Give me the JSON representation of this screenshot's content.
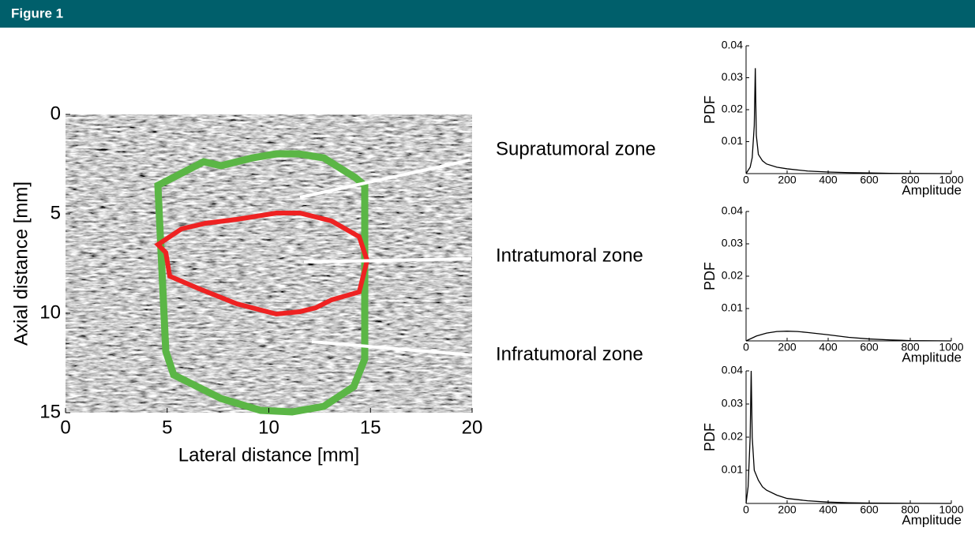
{
  "header": {
    "title": "Figure 1"
  },
  "chart_data": [
    {
      "type": "image",
      "xlabel": "Lateral distance [mm]",
      "ylabel": "Axial distance [mm]",
      "xlim": [
        0,
        20
      ],
      "ylim": [
        15,
        0
      ],
      "xticks": [
        0,
        5,
        10,
        15,
        20
      ],
      "yticks": [
        0,
        5,
        10,
        15
      ],
      "annotations": [
        "Supratumoral zone",
        "Intratumoral zone",
        "Infratumoral zone"
      ]
    },
    {
      "type": "line",
      "xlabel": "Amplitude",
      "ylabel": "PDF",
      "color": "#000000",
      "x": [
        0,
        20,
        30,
        40,
        45,
        50,
        60,
        80,
        100,
        150,
        200,
        300,
        400,
        500,
        600,
        700,
        800,
        1000
      ],
      "values": [
        0,
        0.002,
        0.005,
        0.015,
        0.033,
        0.012,
        0.006,
        0.004,
        0.003,
        0.002,
        0.0015,
        0.0008,
        0.0005,
        0.0003,
        0.0002,
        0.0001,
        5e-05,
        0
      ],
      "xlim": [
        0,
        1000
      ],
      "ylim": [
        0,
        0.04
      ],
      "xticks": [
        0,
        200,
        400,
        600,
        800,
        1000
      ],
      "yticks": [
        0.01,
        0.02,
        0.03,
        0.04
      ]
    },
    {
      "type": "line",
      "xlabel": "Amplitude",
      "ylabel": "PDF",
      "color": "#000000",
      "x": [
        0,
        50,
        100,
        150,
        200,
        250,
        300,
        400,
        500,
        600,
        700,
        800,
        1000
      ],
      "values": [
        0,
        0.0015,
        0.0024,
        0.0029,
        0.003,
        0.0029,
        0.0026,
        0.0019,
        0.0011,
        0.0006,
        0.0003,
        0.0001,
        0
      ],
      "xlim": [
        0,
        1000
      ],
      "ylim": [
        0,
        0.04
      ],
      "xticks": [
        0,
        200,
        400,
        600,
        800,
        1000
      ],
      "yticks": [
        0.01,
        0.02,
        0.03,
        0.04
      ]
    },
    {
      "type": "line",
      "xlabel": "Amplitude",
      "ylabel": "PDF",
      "color": "#000000",
      "x": [
        0,
        10,
        20,
        25,
        30,
        40,
        60,
        80,
        100,
        150,
        200,
        300,
        400,
        500,
        600,
        800,
        1000
      ],
      "values": [
        0,
        0.005,
        0.02,
        0.04,
        0.02,
        0.01,
        0.007,
        0.005,
        0.004,
        0.0025,
        0.0015,
        0.0008,
        0.0004,
        0.0002,
        0.0001,
        3e-05,
        0
      ],
      "xlim": [
        0,
        1000
      ],
      "ylim": [
        0,
        0.04
      ],
      "xticks": [
        0,
        200,
        400,
        600,
        800,
        1000
      ],
      "yticks": [
        0.01,
        0.02,
        0.03,
        0.04
      ]
    }
  ]
}
